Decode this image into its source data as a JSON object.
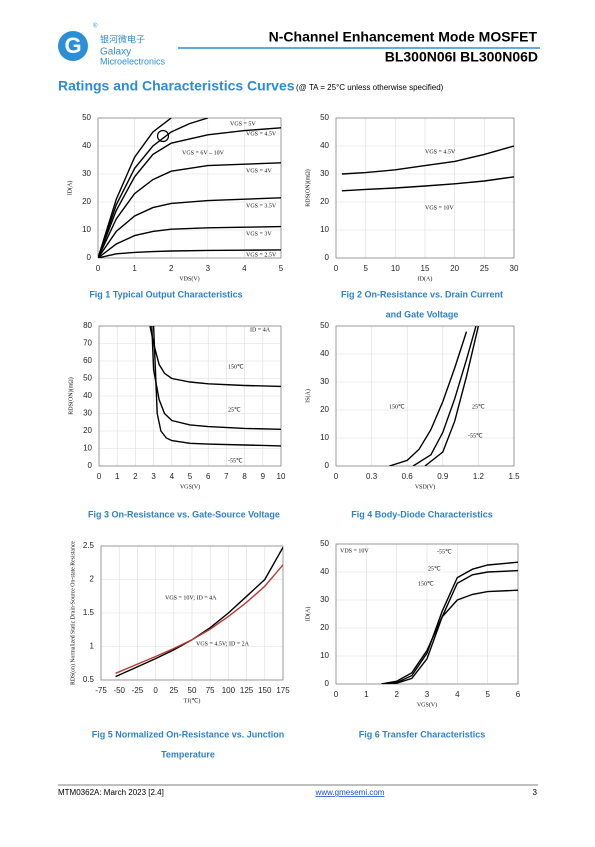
{
  "header": {
    "logo_cn": "银河微电子",
    "logo_name": "Galaxy",
    "logo_sub": "Microelectronics",
    "reg": "®",
    "title": "N-Channel Enhancement Mode MOSFET",
    "parts": "BL300N06I  BL300N06D"
  },
  "section": {
    "title": "Ratings and Characteristics Curves",
    "note": "(@ TA = 25°C unless otherwise specified)"
  },
  "chart_data": [
    {
      "type": "line",
      "caption": [
        "Fig 1    Typical Output Characteristics"
      ],
      "xlabel": "VDS(V)",
      "ylabel": "ID(A)",
      "xlim": [
        0,
        5
      ],
      "ylim": [
        0,
        50
      ],
      "xticks": [
        0,
        1,
        2,
        3,
        4,
        5
      ],
      "yticks": [
        0,
        10,
        20,
        30,
        40,
        50
      ],
      "grid": true,
      "series": [
        {
          "name": "VGS = 5V",
          "color": "#000000",
          "x": [
            0,
            0.5,
            1,
            1.5,
            2,
            2.5,
            3
          ],
          "values": [
            0,
            19,
            32,
            40,
            45,
            48,
            50
          ]
        },
        {
          "name": "VGS = 4.5V",
          "color": "#000000",
          "x": [
            0,
            0.5,
            1,
            1.5,
            2,
            3,
            4,
            5
          ],
          "values": [
            0,
            17,
            29,
            37,
            41,
            44,
            45.5,
            46.5
          ]
        },
        {
          "name": "VGS = 6V – 10V",
          "color": "#000000",
          "x": [
            0,
            0.5,
            1,
            1.5,
            2
          ],
          "values": [
            0,
            21,
            36,
            45,
            50
          ]
        },
        {
          "name": "VGS = 4V",
          "color": "#000000",
          "x": [
            0,
            0.5,
            1,
            1.5,
            2,
            3,
            4,
            5
          ],
          "values": [
            0,
            14,
            23,
            28,
            31,
            33,
            33.5,
            34
          ]
        },
        {
          "name": "VGS = 3.5V",
          "color": "#000000",
          "x": [
            0,
            0.5,
            1,
            1.5,
            2,
            3,
            4,
            5
          ],
          "values": [
            0,
            9.5,
            15,
            18,
            19.5,
            20.5,
            21,
            21.5
          ]
        },
        {
          "name": "VGS = 3V",
          "color": "#000000",
          "x": [
            0,
            0.5,
            1,
            1.5,
            2,
            3,
            4,
            5
          ],
          "values": [
            0,
            5,
            8,
            9.5,
            10.3,
            10.8,
            11,
            11.2
          ]
        },
        {
          "name": "VGS = 2.5V",
          "color": "#000000",
          "x": [
            0,
            0.5,
            1,
            1.5,
            2,
            3,
            4,
            5
          ],
          "values": [
            0,
            1.5,
            2,
            2.3,
            2.5,
            2.7,
            2.8,
            2.9
          ]
        }
      ]
    },
    {
      "type": "line",
      "caption": [
        "Fig 2    On-Resistance vs. Drain Current",
        "and Gate Voltage"
      ],
      "xlabel": "ID(A)",
      "ylabel": "RDS(ON)(mΩ)",
      "xlim": [
        0,
        30
      ],
      "ylim": [
        0,
        50
      ],
      "xticks": [
        0,
        5,
        10,
        15,
        20,
        25,
        30
      ],
      "yticks": [
        0,
        10,
        20,
        30,
        40,
        50
      ],
      "grid": true,
      "series": [
        {
          "name": "VGS = 4.5V",
          "color": "#000000",
          "x": [
            1,
            5,
            10,
            15,
            20,
            25,
            30
          ],
          "values": [
            30,
            30.5,
            31.5,
            33,
            34.5,
            37,
            40
          ]
        },
        {
          "name": "VGS = 10V",
          "color": "#000000",
          "x": [
            1,
            5,
            10,
            15,
            20,
            25,
            30
          ],
          "values": [
            24,
            24.5,
            25,
            25.7,
            26.5,
            27.5,
            29
          ]
        }
      ]
    },
    {
      "type": "line",
      "caption": [
        "Fig 3    On-Resistance vs. Gate-Source Voltage"
      ],
      "xlabel": "VGS(V)",
      "ylabel": "RDS(ON)(mΩ)",
      "annotation": "ID = 4A",
      "xlim": [
        0,
        10
      ],
      "ylim": [
        0,
        80
      ],
      "xticks": [
        0,
        1,
        2,
        3,
        4,
        5,
        6,
        7,
        8,
        9,
        10
      ],
      "yticks": [
        0,
        10,
        20,
        30,
        40,
        50,
        60,
        70,
        80
      ],
      "grid": true,
      "series": [
        {
          "name": "150℃",
          "color": "#000000",
          "x": [
            2.8,
            3,
            3.3,
            3.6,
            4,
            5,
            6,
            8,
            10
          ],
          "values": [
            80,
            70,
            58,
            53,
            50,
            48,
            47,
            46,
            45.5
          ]
        },
        {
          "name": "25℃",
          "color": "#000000",
          "x": [
            2.9,
            3,
            3.3,
            3.6,
            4,
            5,
            6,
            8,
            10
          ],
          "values": [
            80,
            55,
            38,
            30,
            26,
            23.5,
            22.5,
            21.5,
            21
          ]
        },
        {
          "name": "-55℃",
          "color": "#000000",
          "x": [
            3,
            3.2,
            3.4,
            3.7,
            4,
            5,
            6,
            8,
            10
          ],
          "values": [
            80,
            30,
            20,
            16,
            14.5,
            13,
            12.5,
            12,
            11.5
          ]
        }
      ]
    },
    {
      "type": "line",
      "caption": [
        "Fig 4    Body-Diode Characteristics"
      ],
      "xlabel": "VSD(V)",
      "ylabel": "IS(A)",
      "xlim": [
        0,
        1.5
      ],
      "ylim": [
        0,
        50
      ],
      "xticks": [
        0,
        0.3,
        0.6,
        0.9,
        1.2,
        1.5
      ],
      "yticks": [
        0,
        10,
        20,
        30,
        40,
        50
      ],
      "grid": true,
      "series": [
        {
          "name": "150℃",
          "color": "#000000",
          "x": [
            0.45,
            0.6,
            0.7,
            0.8,
            0.9,
            1.0,
            1.1
          ],
          "values": [
            0,
            2,
            6,
            13,
            23,
            35,
            48
          ]
        },
        {
          "name": "25℃",
          "color": "#000000",
          "x": [
            0.65,
            0.8,
            0.9,
            1.0,
            1.1,
            1.18
          ],
          "values": [
            0,
            4,
            12,
            24,
            38,
            50
          ]
        },
        {
          "name": "-55℃",
          "color": "#000000",
          "x": [
            0.75,
            0.9,
            1.0,
            1.1,
            1.2
          ],
          "values": [
            0,
            5,
            16,
            32,
            50
          ]
        }
      ]
    },
    {
      "type": "line",
      "caption": [
        "Fig 5    Normalized On-Resistance vs. Junction",
        "Temperature"
      ],
      "xlabel": "TJ(℃)",
      "ylabel": "RDS(on) Normalized Static Drain-Source On-state Resistance",
      "xlim": [
        -75,
        175
      ],
      "ylim": [
        0.5,
        2.5
      ],
      "xticks": [
        -75,
        -50,
        -25,
        0,
        25,
        50,
        75,
        100,
        125,
        150,
        175
      ],
      "yticks": [
        0.5,
        1,
        1.5,
        2,
        2.5
      ],
      "grid": true,
      "series": [
        {
          "name": "VGS = 10V; ID = 4A",
          "color": "#000000",
          "x": [
            -55,
            0,
            25,
            50,
            75,
            100,
            125,
            150,
            175
          ],
          "values": [
            0.55,
            0.82,
            0.95,
            1.1,
            1.28,
            1.5,
            1.75,
            2.0,
            2.48
          ]
        },
        {
          "name": "VGS = 4.5V; ID = 2A",
          "color": "#b83a32",
          "x": [
            -55,
            0,
            25,
            50,
            75,
            100,
            125,
            150,
            175
          ],
          "values": [
            0.6,
            0.85,
            0.97,
            1.1,
            1.26,
            1.45,
            1.66,
            1.9,
            2.22
          ]
        }
      ]
    },
    {
      "type": "line",
      "caption": [
        "Fig 6    Transfer Characteristics"
      ],
      "xlabel": "VGS(V)",
      "ylabel": "ID(A)",
      "annotation": "VDS = 10V",
      "xlim": [
        0,
        6
      ],
      "ylim": [
        0,
        50
      ],
      "xticks": [
        0,
        1,
        2,
        3,
        4,
        5,
        6
      ],
      "yticks": [
        0,
        10,
        20,
        30,
        40,
        50
      ],
      "grid": true,
      "series": [
        {
          "name": "-55℃",
          "color": "#000000",
          "x": [
            1.5,
            2,
            2.5,
            3,
            3.5,
            4,
            4.5,
            5,
            6
          ],
          "values": [
            0,
            0.5,
            3,
            11,
            26,
            38,
            41,
            42.5,
            43.5
          ]
        },
        {
          "name": "25℃",
          "color": "#000000",
          "x": [
            1.5,
            2,
            2.5,
            3,
            3.5,
            4,
            4.5,
            5,
            6
          ],
          "values": [
            0,
            0.3,
            2,
            9,
            24,
            36,
            39,
            40,
            40.5
          ]
        },
        {
          "name": "150℃",
          "color": "#000000",
          "x": [
            1.5,
            2,
            2.5,
            3,
            3.5,
            4,
            4.5,
            5,
            6
          ],
          "values": [
            0,
            1,
            4,
            12,
            24,
            30,
            32,
            33,
            33.5
          ]
        }
      ]
    }
  ],
  "footer": {
    "doc": "MTM0362A: March 2023 [2.4]",
    "url": "www.gmesemi.com",
    "page": "3"
  }
}
